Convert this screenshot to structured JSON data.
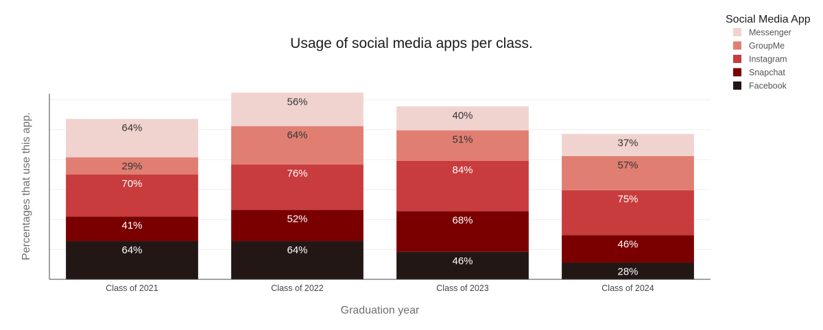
{
  "chart_data": {
    "type": "bar",
    "stacked": true,
    "title": "Usage of social media apps per class.",
    "xlabel": "Graduation year",
    "ylabel": "Percentages that use this app.",
    "categories": [
      "Class of 2021",
      "Class of 2022",
      "Class of 2023",
      "Class of 2024"
    ],
    "ylim": [
      0,
      310
    ],
    "grid": true,
    "series": [
      {
        "name": "Facebook",
        "color": "#231716",
        "label_color": "#ffffff",
        "values": [
          64,
          64,
          46,
          28
        ]
      },
      {
        "name": "Snapchat",
        "color": "#7a0000",
        "label_color": "#ffffff",
        "values": [
          41,
          52,
          68,
          46
        ]
      },
      {
        "name": "Instagram",
        "color": "#c83c3e",
        "label_color": "#ffffff",
        "values": [
          70,
          76,
          84,
          75
        ]
      },
      {
        "name": "GroupMe",
        "color": "#e07e72",
        "label_color": "#333333",
        "values": [
          29,
          64,
          51,
          57
        ]
      },
      {
        "name": "Messenger",
        "color": "#f0d3cf",
        "label_color": "#333333",
        "values": [
          64,
          56,
          40,
          37
        ]
      }
    ],
    "legend": {
      "title": "Social Media App",
      "placement": "top-right",
      "order": [
        "Messenger",
        "GroupMe",
        "Instagram",
        "Snapchat",
        "Facebook"
      ]
    }
  }
}
